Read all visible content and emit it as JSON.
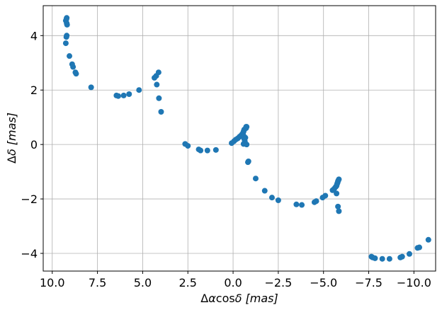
{
  "chart_data": {
    "type": "scatter",
    "title": "",
    "xlabel": "Δα cosδ [mas]",
    "xlabel_parts": {
      "delta": "Δ",
      "alpha": "α",
      "cos": "cos",
      "delta2": "δ",
      "unit": "[mas]"
    },
    "ylabel": "Δδ [mas]",
    "ylabel_parts": {
      "delta": "Δ",
      "var": "δ",
      "unit": "[mas]"
    },
    "xlim": [
      10.5,
      -11.2
    ],
    "ylim": [
      -4.65,
      5.1
    ],
    "xticks": [
      10.0,
      7.5,
      5.0,
      2.5,
      0.0,
      -2.5,
      -5.0,
      -7.5,
      -10.0
    ],
    "xtick_labels": [
      "10.0",
      "7.5",
      "5.0",
      "2.5",
      "0.0",
      "−2.5",
      "−5.0",
      "−7.5",
      "−10.0"
    ],
    "yticks": [
      4,
      2,
      0,
      -2,
      -4
    ],
    "ytick_labels": [
      "4",
      "2",
      "0",
      "−2",
      "−4"
    ],
    "grid": true,
    "marker_color": "#1f77b4",
    "series": [
      {
        "name": "points",
        "x": [
          9.2,
          9.22,
          9.25,
          9.2,
          9.18,
          9.2,
          9.22,
          9.25,
          9.05,
          8.9,
          8.85,
          8.72,
          8.68,
          7.85,
          6.45,
          6.35,
          6.05,
          5.75,
          5.2,
          4.35,
          4.25,
          4.12,
          4.22,
          4.1,
          3.98,
          2.65,
          2.5,
          1.9,
          1.8,
          1.42,
          0.95,
          0.08,
          -0.05,
          -0.15,
          -0.25,
          -0.35,
          -0.42,
          -0.5,
          -0.55,
          -0.58,
          -0.6,
          -0.62,
          -0.65,
          -0.68,
          -0.72,
          -0.72,
          -0.6,
          -0.62,
          -0.58,
          -0.75,
          -0.75,
          -0.85,
          -0.82,
          -1.25,
          -1.75,
          -2.15,
          -2.5,
          -3.5,
          -3.8,
          -4.5,
          -4.6,
          -4.95,
          -5.1,
          -5.5,
          -5.6,
          -5.68,
          -5.72,
          -5.75,
          -5.78,
          -5.8,
          -5.82,
          -5.85,
          -5.72,
          -5.8,
          -5.85,
          -7.65,
          -7.72,
          -7.85,
          -8.25,
          -8.65,
          -9.25,
          -9.35,
          -9.75,
          -10.2,
          -10.3,
          -10.8
        ],
        "y": [
          4.65,
          4.6,
          4.55,
          4.45,
          4.4,
          4.0,
          3.95,
          3.72,
          3.25,
          2.95,
          2.85,
          2.65,
          2.6,
          2.1,
          1.8,
          1.78,
          1.8,
          1.85,
          2.0,
          2.45,
          2.52,
          2.65,
          2.2,
          1.7,
          1.2,
          0.02,
          -0.05,
          -0.18,
          -0.22,
          -0.22,
          -0.2,
          0.05,
          0.12,
          0.18,
          0.22,
          0.28,
          0.32,
          0.38,
          0.42,
          0.48,
          0.52,
          0.55,
          0.12,
          0.25,
          0.6,
          0.65,
          0.3,
          0.2,
          0.02,
          0.0,
          0.65,
          -0.62,
          -0.65,
          -1.25,
          -1.7,
          -1.95,
          -2.05,
          -2.2,
          -2.22,
          -2.12,
          -2.08,
          -1.95,
          -1.88,
          -1.68,
          -1.62,
          -1.55,
          -1.52,
          -1.45,
          -1.4,
          -1.35,
          -1.32,
          -1.28,
          -1.8,
          -2.28,
          -2.45,
          -4.12,
          -4.15,
          -4.18,
          -4.2,
          -4.2,
          -4.15,
          -4.12,
          -4.02,
          -3.8,
          -3.78,
          -3.5
        ]
      }
    ]
  }
}
